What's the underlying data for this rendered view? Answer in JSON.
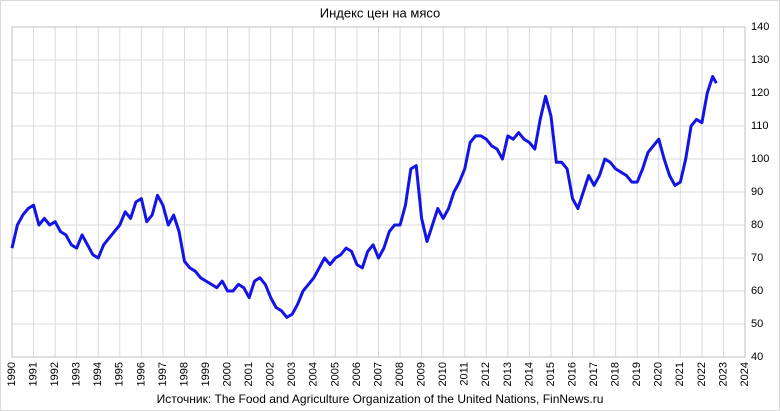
{
  "chart_data": {
    "type": "line",
    "title": "Индекс цен на мясо",
    "source": "Источник: The Food and Agriculture Organization of the United Nations, FinNews.ru",
    "x": [
      1990,
      1990.25,
      1990.5,
      1990.75,
      1991,
      1991.25,
      1991.5,
      1991.75,
      1992,
      1992.25,
      1992.5,
      1992.75,
      1993,
      1993.25,
      1993.5,
      1993.75,
      1994,
      1994.25,
      1994.5,
      1994.75,
      1995,
      1995.25,
      1995.5,
      1995.75,
      1996,
      1996.25,
      1996.5,
      1996.75,
      1997,
      1997.25,
      1997.5,
      1997.75,
      1998,
      1998.25,
      1998.5,
      1998.75,
      1999,
      1999.25,
      1999.5,
      1999.75,
      2000,
      2000.25,
      2000.5,
      2000.75,
      2001,
      2001.25,
      2001.5,
      2001.75,
      2002,
      2002.25,
      2002.5,
      2002.75,
      2003,
      2003.25,
      2003.5,
      2003.75,
      2004,
      2004.25,
      2004.5,
      2004.75,
      2005,
      2005.25,
      2005.5,
      2005.75,
      2006,
      2006.25,
      2006.5,
      2006.75,
      2007,
      2007.25,
      2007.5,
      2007.75,
      2008,
      2008.25,
      2008.5,
      2008.75,
      2009,
      2009.25,
      2009.5,
      2009.75,
      2010,
      2010.25,
      2010.5,
      2010.75,
      2011,
      2011.25,
      2011.5,
      2011.75,
      2012,
      2012.25,
      2012.5,
      2012.75,
      2013,
      2013.25,
      2013.5,
      2013.75,
      2014,
      2014.25,
      2014.5,
      2014.75,
      2015,
      2015.25,
      2015.5,
      2015.75,
      2016,
      2016.25,
      2016.5,
      2016.75,
      2017,
      2017.25,
      2017.5,
      2017.75,
      2018,
      2018.25,
      2018.5,
      2018.75,
      2019,
      2019.25,
      2019.5,
      2019.75,
      2020,
      2020.25,
      2020.5,
      2020.75,
      2021,
      2021.25,
      2021.5,
      2021.75,
      2022,
      2022.25,
      2022.5,
      2022.67
    ],
    "series": [
      {
        "name": "Индекс цен на мясо",
        "color": "#1414e6",
        "values": [
          73,
          80,
          83,
          85,
          86,
          80,
          82,
          80,
          81,
          78,
          77,
          74,
          73,
          77,
          74,
          71,
          70,
          74,
          76,
          78,
          80,
          84,
          82,
          87,
          88,
          81,
          83,
          89,
          86,
          80,
          83,
          78,
          69,
          67,
          66,
          64,
          63,
          62,
          61,
          63,
          60,
          60,
          62,
          61,
          58,
          63,
          64,
          62,
          58,
          55,
          54,
          52,
          53,
          56,
          60,
          62,
          64,
          67,
          70,
          68,
          70,
          71,
          73,
          72,
          68,
          67,
          72,
          74,
          70,
          73,
          78,
          80,
          80,
          86,
          97,
          98,
          82,
          75,
          80,
          85,
          82,
          85,
          90,
          93,
          97,
          105,
          107,
          107,
          106,
          104,
          103,
          100,
          107,
          106,
          108,
          106,
          105,
          103,
          112,
          119,
          113,
          99,
          99,
          97,
          88,
          85,
          90,
          95,
          92,
          95,
          100,
          99,
          97,
          96,
          95,
          93,
          93,
          97,
          102,
          104,
          106,
          100,
          95,
          92,
          93,
          100,
          110,
          112,
          111,
          120,
          125,
          123
        ]
      }
    ],
    "xlim": [
      1990,
      2024
    ],
    "xticks": [
      1990,
      1991,
      1992,
      1993,
      1994,
      1995,
      1996,
      1997,
      1998,
      1999,
      2000,
      2001,
      2002,
      2003,
      2004,
      2005,
      2006,
      2007,
      2008,
      2009,
      2010,
      2011,
      2012,
      2013,
      2014,
      2015,
      2016,
      2017,
      2018,
      2019,
      2020,
      2021,
      2022,
      2023,
      2024
    ],
    "ylim": [
      40,
      140
    ],
    "yticks": [
      40,
      50,
      60,
      70,
      80,
      90,
      100,
      110,
      120,
      130,
      140
    ],
    "grid": true
  }
}
